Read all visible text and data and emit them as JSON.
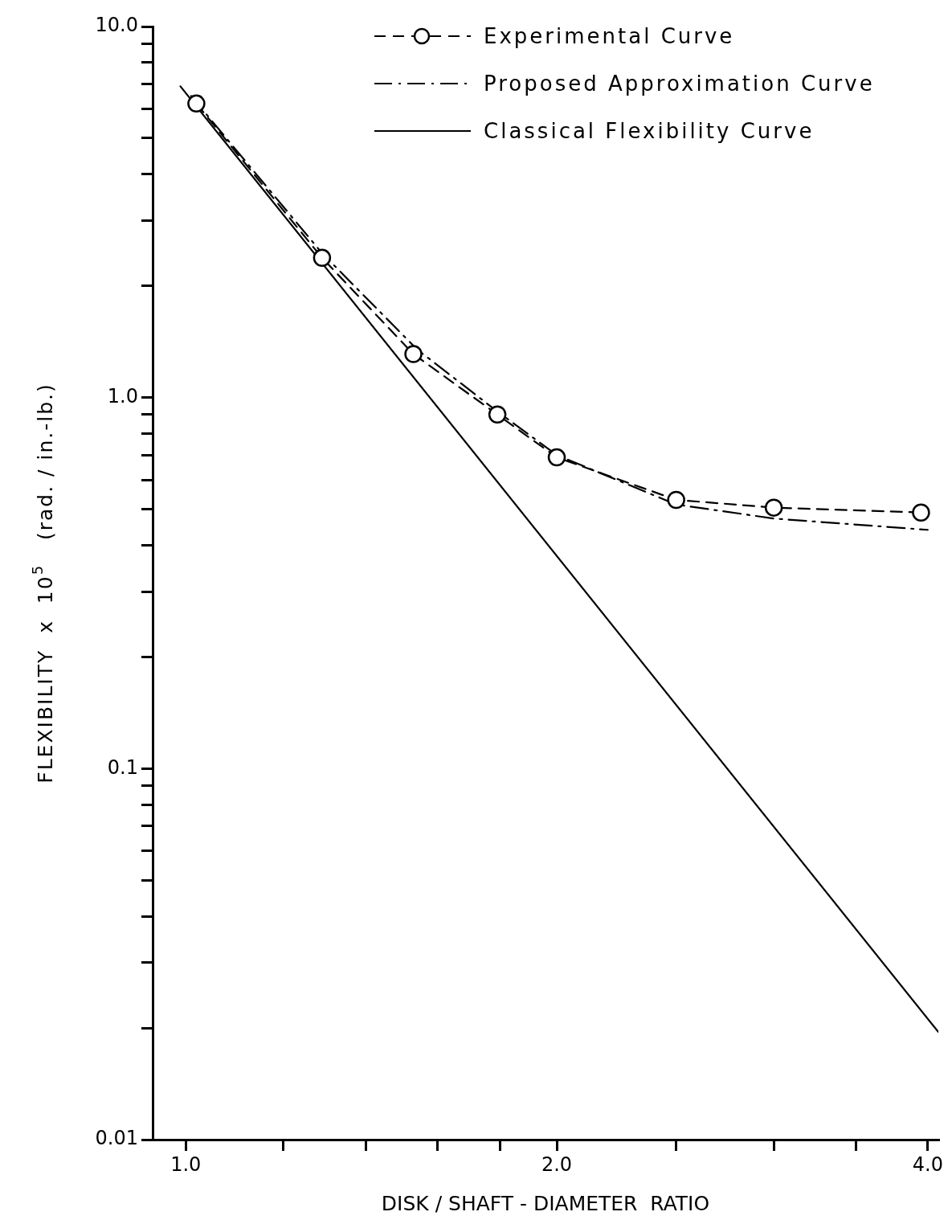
{
  "chart_data": {
    "type": "line",
    "xlabel": "DISK / SHAFT - DIAMETER  RATIO",
    "ylabel": "FLEXIBILITY  x  10$^{5}$   (rad. / in.-lb.)",
    "log": "xy",
    "grid": false,
    "legend": "top right",
    "xlim": [
      0.94,
      4.08
    ],
    "ylim": [
      0.01,
      10
    ],
    "xticks": [
      {
        "value": 1,
        "label": "1.0"
      },
      {
        "value": 1.2,
        "label": null
      },
      {
        "value": 1.4,
        "label": null
      },
      {
        "value": 1.6,
        "label": null
      },
      {
        "value": 1.8,
        "label": null
      },
      {
        "value": 2,
        "label": "2.0"
      },
      {
        "value": 2.5,
        "label": null
      },
      {
        "value": 3,
        "label": null
      },
      {
        "value": 3.5,
        "label": null
      },
      {
        "value": 4,
        "label": "4.0"
      }
    ],
    "yticks": [
      {
        "value": 0.01,
        "label": "0.01"
      },
      {
        "value": 0.02,
        "label": null
      },
      {
        "value": 0.03,
        "label": null
      },
      {
        "value": 0.04,
        "label": null
      },
      {
        "value": 0.05,
        "label": null
      },
      {
        "value": 0.06,
        "label": null
      },
      {
        "value": 0.07,
        "label": null
      },
      {
        "value": 0.08,
        "label": null
      },
      {
        "value": 0.09,
        "label": null
      },
      {
        "value": 0.1,
        "label": "0.1"
      },
      {
        "value": 0.2,
        "label": null
      },
      {
        "value": 0.3,
        "label": null
      },
      {
        "value": 0.4,
        "label": null
      },
      {
        "value": 0.5,
        "label": null
      },
      {
        "value": 0.6,
        "label": null
      },
      {
        "value": 0.7,
        "label": null
      },
      {
        "value": 0.8,
        "label": null
      },
      {
        "value": 0.9,
        "label": null
      },
      {
        "value": 1,
        "label": "1.0"
      },
      {
        "value": 2,
        "label": null
      },
      {
        "value": 3,
        "label": null
      },
      {
        "value": 4,
        "label": null
      },
      {
        "value": 5,
        "label": null
      },
      {
        "value": 6,
        "label": null
      },
      {
        "value": 7,
        "label": null
      },
      {
        "value": 8,
        "label": null
      },
      {
        "value": 9,
        "label": null
      },
      {
        "value": 10,
        "label": "10.0"
      }
    ],
    "series": [
      {
        "name": "Experimental Curve",
        "color": "#000000",
        "marker": "circle",
        "line_style": "dashed",
        "x": [
          1.02,
          1.29,
          1.53,
          1.79,
          2.0,
          2.5,
          3.0,
          3.95
        ],
        "values": [
          6.2,
          2.38,
          1.31,
          0.9,
          0.69,
          0.53,
          0.505,
          0.49
        ]
      },
      {
        "name": "Proposed  Approximation  Curve",
        "color": "#000000",
        "marker": "none",
        "line_style": "dashdot",
        "x": [
          1.01,
          1.29,
          1.54,
          1.78,
          2.0,
          2.5,
          3.0,
          4.0
        ],
        "values": [
          6.5,
          2.45,
          1.35,
          0.93,
          0.7,
          0.515,
          0.472,
          0.44
        ]
      },
      {
        "name": "Classical  Flexibility  Curve",
        "color": "#000000",
        "marker": "none",
        "line_style": "solid",
        "x": [
          0.99,
          4.08
        ],
        "values": [
          6.9,
          0.0195
        ]
      }
    ]
  }
}
